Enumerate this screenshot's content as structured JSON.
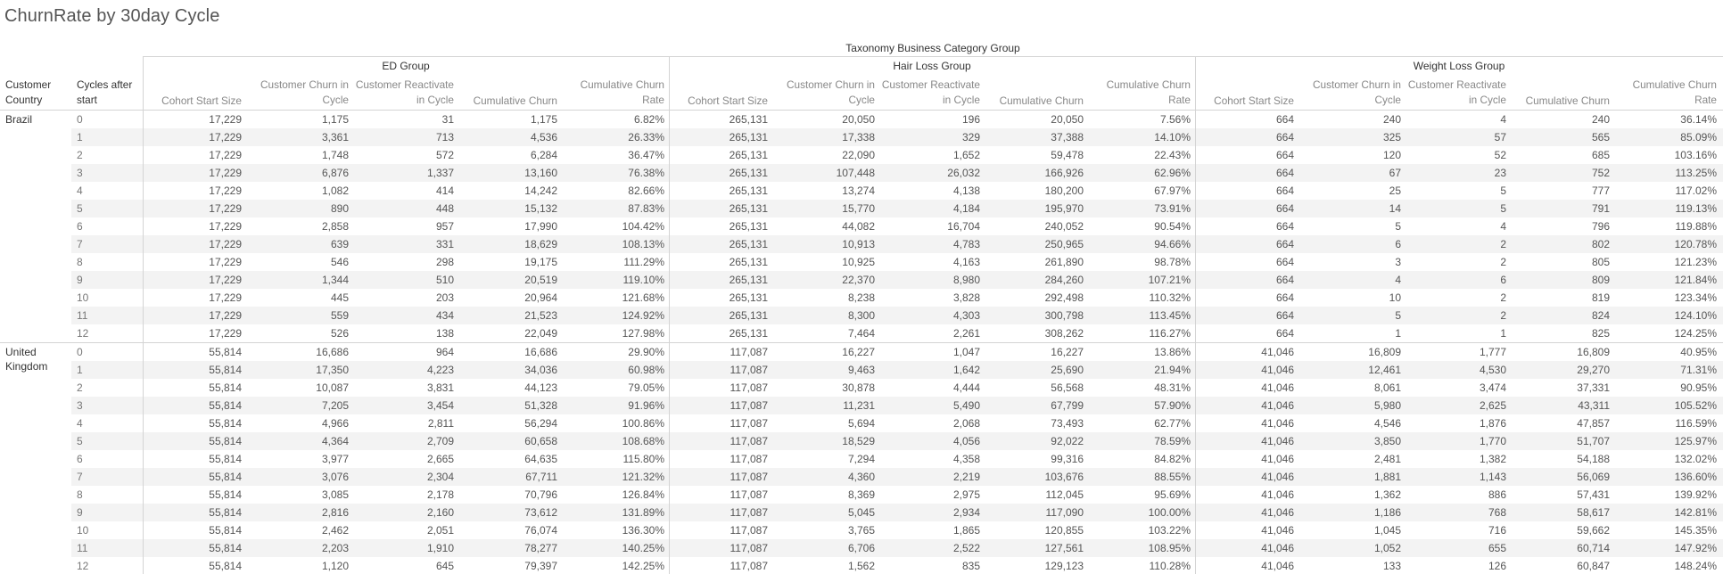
{
  "title": "ChurnRate by 30day Cycle",
  "header": {
    "taxonomy_label": "Taxonomy Business Category Group",
    "groups": [
      "ED Group",
      "Hair Loss Group",
      "Weight Loss Group"
    ],
    "row_header_1": "Customer Country",
    "row_header_2": "Cycles after start",
    "measures": [
      "Cohort Start Size",
      "Customer Churn in Cycle",
      "Customer Reactivate in Cycle",
      "Cumulative Churn",
      "Cumulative Churn Rate"
    ]
  },
  "countries": [
    {
      "name": "Brazil",
      "rows": [
        [
          "0",
          "17,229",
          "1,175",
          "31",
          "1,175",
          "6.82%",
          "265,131",
          "20,050",
          "196",
          "20,050",
          "7.56%",
          "664",
          "240",
          "4",
          "240",
          "36.14%"
        ],
        [
          "1",
          "17,229",
          "3,361",
          "713",
          "4,536",
          "26.33%",
          "265,131",
          "17,338",
          "329",
          "37,388",
          "14.10%",
          "664",
          "325",
          "57",
          "565",
          "85.09%"
        ],
        [
          "2",
          "17,229",
          "1,748",
          "572",
          "6,284",
          "36.47%",
          "265,131",
          "22,090",
          "1,652",
          "59,478",
          "22.43%",
          "664",
          "120",
          "52",
          "685",
          "103.16%"
        ],
        [
          "3",
          "17,229",
          "6,876",
          "1,337",
          "13,160",
          "76.38%",
          "265,131",
          "107,448",
          "26,032",
          "166,926",
          "62.96%",
          "664",
          "67",
          "23",
          "752",
          "113.25%"
        ],
        [
          "4",
          "17,229",
          "1,082",
          "414",
          "14,242",
          "82.66%",
          "265,131",
          "13,274",
          "4,138",
          "180,200",
          "67.97%",
          "664",
          "25",
          "5",
          "777",
          "117.02%"
        ],
        [
          "5",
          "17,229",
          "890",
          "448",
          "15,132",
          "87.83%",
          "265,131",
          "15,770",
          "4,184",
          "195,970",
          "73.91%",
          "664",
          "14",
          "5",
          "791",
          "119.13%"
        ],
        [
          "6",
          "17,229",
          "2,858",
          "957",
          "17,990",
          "104.42%",
          "265,131",
          "44,082",
          "16,704",
          "240,052",
          "90.54%",
          "664",
          "5",
          "4",
          "796",
          "119.88%"
        ],
        [
          "7",
          "17,229",
          "639",
          "331",
          "18,629",
          "108.13%",
          "265,131",
          "10,913",
          "4,783",
          "250,965",
          "94.66%",
          "664",
          "6",
          "2",
          "802",
          "120.78%"
        ],
        [
          "8",
          "17,229",
          "546",
          "298",
          "19,175",
          "111.29%",
          "265,131",
          "10,925",
          "4,163",
          "261,890",
          "98.78%",
          "664",
          "3",
          "2",
          "805",
          "121.23%"
        ],
        [
          "9",
          "17,229",
          "1,344",
          "510",
          "20,519",
          "119.10%",
          "265,131",
          "22,370",
          "8,980",
          "284,260",
          "107.21%",
          "664",
          "4",
          "6",
          "809",
          "121.84%"
        ],
        [
          "10",
          "17,229",
          "445",
          "203",
          "20,964",
          "121.68%",
          "265,131",
          "8,238",
          "3,828",
          "292,498",
          "110.32%",
          "664",
          "10",
          "2",
          "819",
          "123.34%"
        ],
        [
          "11",
          "17,229",
          "559",
          "434",
          "21,523",
          "124.92%",
          "265,131",
          "8,300",
          "4,303",
          "300,798",
          "113.45%",
          "664",
          "5",
          "2",
          "824",
          "124.10%"
        ],
        [
          "12",
          "17,229",
          "526",
          "138",
          "22,049",
          "127.98%",
          "265,131",
          "7,464",
          "2,261",
          "308,262",
          "116.27%",
          "664",
          "1",
          "1",
          "825",
          "124.25%"
        ]
      ]
    },
    {
      "name": "United Kingdom",
      "rows": [
        [
          "0",
          "55,814",
          "16,686",
          "964",
          "16,686",
          "29.90%",
          "117,087",
          "16,227",
          "1,047",
          "16,227",
          "13.86%",
          "41,046",
          "16,809",
          "1,777",
          "16,809",
          "40.95%"
        ],
        [
          "1",
          "55,814",
          "17,350",
          "4,223",
          "34,036",
          "60.98%",
          "117,087",
          "9,463",
          "1,642",
          "25,690",
          "21.94%",
          "41,046",
          "12,461",
          "4,530",
          "29,270",
          "71.31%"
        ],
        [
          "2",
          "55,814",
          "10,087",
          "3,831",
          "44,123",
          "79.05%",
          "117,087",
          "30,878",
          "4,444",
          "56,568",
          "48.31%",
          "41,046",
          "8,061",
          "3,474",
          "37,331",
          "90.95%"
        ],
        [
          "3",
          "55,814",
          "7,205",
          "3,454",
          "51,328",
          "91.96%",
          "117,087",
          "11,231",
          "5,490",
          "67,799",
          "57.90%",
          "41,046",
          "5,980",
          "2,625",
          "43,311",
          "105.52%"
        ],
        [
          "4",
          "55,814",
          "4,966",
          "2,811",
          "56,294",
          "100.86%",
          "117,087",
          "5,694",
          "2,068",
          "73,493",
          "62.77%",
          "41,046",
          "4,546",
          "1,876",
          "47,857",
          "116.59%"
        ],
        [
          "5",
          "55,814",
          "4,364",
          "2,709",
          "60,658",
          "108.68%",
          "117,087",
          "18,529",
          "4,056",
          "92,022",
          "78.59%",
          "41,046",
          "3,850",
          "1,770",
          "51,707",
          "125.97%"
        ],
        [
          "6",
          "55,814",
          "3,977",
          "2,665",
          "64,635",
          "115.80%",
          "117,087",
          "7,294",
          "4,358",
          "99,316",
          "84.82%",
          "41,046",
          "2,481",
          "1,382",
          "54,188",
          "132.02%"
        ],
        [
          "7",
          "55,814",
          "3,076",
          "2,304",
          "67,711",
          "121.32%",
          "117,087",
          "4,360",
          "2,219",
          "103,676",
          "88.55%",
          "41,046",
          "1,881",
          "1,143",
          "56,069",
          "136.60%"
        ],
        [
          "8",
          "55,814",
          "3,085",
          "2,178",
          "70,796",
          "126.84%",
          "117,087",
          "8,369",
          "2,975",
          "112,045",
          "95.69%",
          "41,046",
          "1,362",
          "886",
          "57,431",
          "139.92%"
        ],
        [
          "9",
          "55,814",
          "2,816",
          "2,160",
          "73,612",
          "131.89%",
          "117,087",
          "5,045",
          "2,934",
          "117,090",
          "100.00%",
          "41,046",
          "1,186",
          "768",
          "58,617",
          "142.81%"
        ],
        [
          "10",
          "55,814",
          "2,462",
          "2,051",
          "76,074",
          "136.30%",
          "117,087",
          "3,765",
          "1,865",
          "120,855",
          "103.22%",
          "41,046",
          "1,045",
          "716",
          "59,662",
          "145.35%"
        ],
        [
          "11",
          "55,814",
          "2,203",
          "1,910",
          "78,277",
          "140.25%",
          "117,087",
          "6,706",
          "2,522",
          "127,561",
          "108.95%",
          "41,046",
          "1,052",
          "655",
          "60,714",
          "147.92%"
        ],
        [
          "12",
          "55,814",
          "1,120",
          "645",
          "79,397",
          "142.25%",
          "117,087",
          "1,562",
          "835",
          "129,123",
          "110.28%",
          "41,046",
          "133",
          "126",
          "60,847",
          "148.24%"
        ]
      ]
    }
  ],
  "colors": {
    "band": "#f3f3f3",
    "grid": "#d4d4d4",
    "header_text": "#888888",
    "value_text": "#555555"
  }
}
